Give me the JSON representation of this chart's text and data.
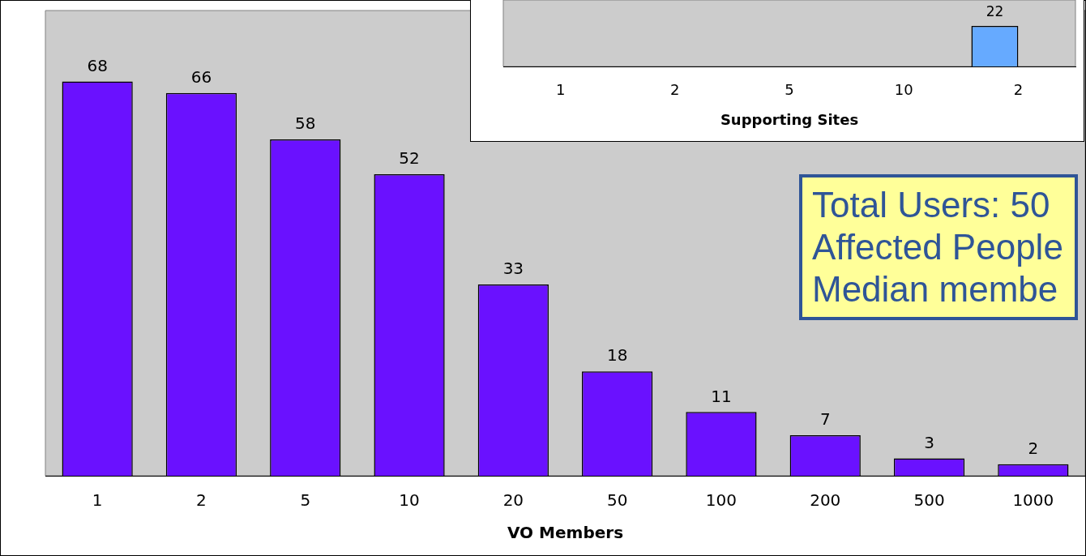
{
  "chart_data": [
    {
      "type": "bar",
      "xlabel": "VO Members",
      "categories": [
        "1",
        "2",
        "5",
        "10",
        "20",
        "50",
        "100",
        "200",
        "500",
        "1000"
      ],
      "values": [
        68,
        66,
        58,
        52,
        33,
        18,
        11,
        7,
        3,
        2
      ],
      "color": "#6a11ff",
      "data_labels": true,
      "legend": false,
      "grid": false,
      "annotations": [
        "Total Users:  50",
        "Affected People",
        "Median membe"
      ]
    },
    {
      "type": "bar",
      "xlabel": "Supporting Sites",
      "categories": [
        "1",
        "2",
        "5",
        "10",
        "2"
      ],
      "legend": false,
      "grid": false,
      "series": [
        {
          "color": "#66aaff",
          "values": [
            null,
            null,
            null,
            null,
            22
          ],
          "value_labels": [
            null,
            null,
            null,
            null,
            "22"
          ]
        },
        {
          "color": "#dd2a33",
          "values": [
            null,
            null,
            null,
            null,
            null
          ]
        }
      ]
    }
  ]
}
